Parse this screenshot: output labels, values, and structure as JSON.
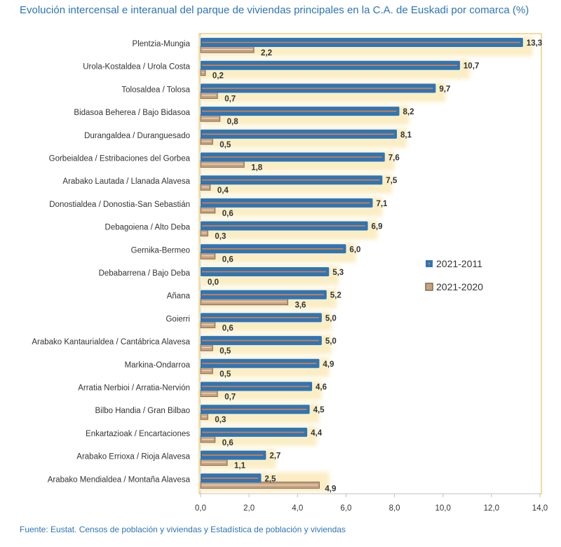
{
  "title": "Evolución intercensal e interanual del parque de viviendas principales en la C.A. de Euskadi por comarca (%)",
  "source": "Fuente: Eustat. Censos de población y viviendas y  Estadística de población y viviendas",
  "colors": {
    "series1": "#2e75b6",
    "series1_line": "#ed7d31",
    "series2": "#c9a27e",
    "series2_border": "#7f6a55",
    "glow": "#fbeec4",
    "plot_border": "#e8b63a",
    "axis": "#bfbfbf"
  },
  "chart_data": {
    "type": "bar",
    "orientation": "horizontal",
    "title": "Evolución intercensal e interanual del parque de viviendas principales en la C.A. de Euskadi por comarca (%)",
    "xlabel": "",
    "ylabel": "",
    "xlim": [
      0,
      14
    ],
    "xticks": [
      "0,0",
      "2,0",
      "4,0",
      "6,0",
      "8,0",
      "10,0",
      "12,0",
      "14,0"
    ],
    "legend_position": "right",
    "categories": [
      "Plentzia-Mungia",
      "Urola-Kostaldea / Urola Costa",
      "Tolosaldea / Tolosa",
      "Bidasoa Beherea / Bajo Bidasoa",
      "Durangaldea / Duranguesado",
      "Gorbeialdea / Estribaciones del Gorbea",
      "Arabako Lautada / Llanada Alavesa",
      "Donostialdea / Donostia-San Sebastián",
      "Debagoiena / Alto Deba",
      "Gernika-Bermeo",
      "Debabarrena / Bajo Deba",
      "Añana",
      "Goierri",
      "Arabako Kantaurialdea / Cantábrica Alavesa",
      "Markina-Ondarroa",
      "Arratia Nerbioi / Arratia-Nervión",
      "Bilbo Handia / Gran Bilbao",
      "Enkartazioak / Encartaciones",
      "Arabako Errioxa / Rioja Alavesa",
      "Arabako Mendialdea / Montaña Alavesa"
    ],
    "series": [
      {
        "name": "2021-2011",
        "values": [
          13.3,
          10.7,
          9.7,
          8.2,
          8.1,
          7.6,
          7.5,
          7.1,
          6.9,
          6.0,
          5.3,
          5.2,
          5.0,
          5.0,
          4.9,
          4.6,
          4.5,
          4.4,
          2.7,
          2.5
        ],
        "labels": [
          "13,3",
          "10,7",
          "9,7",
          "8,2",
          "8,1",
          "7,6",
          "7,5",
          "7,1",
          "6,9",
          "6,0",
          "5,3",
          "5,2",
          "5,0",
          "5,0",
          "4,9",
          "4,6",
          "4,5",
          "4,4",
          "2,7",
          "2,5"
        ]
      },
      {
        "name": "2021-2020",
        "values": [
          2.2,
          0.2,
          0.7,
          0.8,
          0.5,
          1.8,
          0.4,
          0.6,
          0.3,
          0.6,
          0.0,
          3.6,
          0.6,
          0.5,
          0.5,
          0.7,
          0.3,
          0.6,
          1.1,
          4.9
        ],
        "labels": [
          "2,2",
          "0,2",
          "0,7",
          "0,8",
          "0,5",
          "1,8",
          "0,4",
          "0,6",
          "0,3",
          "0,6",
          "0,0",
          "3,6",
          "0,6",
          "0,5",
          "0,5",
          "0,7",
          "0,3",
          "0,6",
          "1,1",
          "4,9"
        ]
      }
    ]
  }
}
